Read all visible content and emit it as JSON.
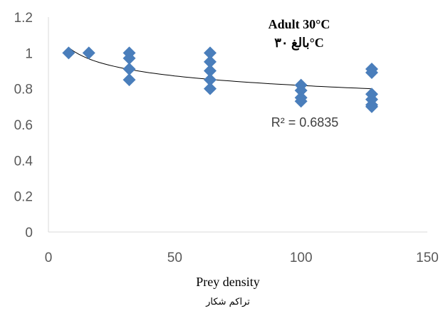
{
  "chart_data": {
    "type": "scatter",
    "title": "Adult 30°C",
    "subtitle": "بالغ ۳۰°C",
    "xlabel": "Prey density",
    "xlabel_secondary": "تراكم شكار",
    "ylabel": "",
    "xlim": [
      0,
      150
    ],
    "ylim": [
      0,
      1.2
    ],
    "x_ticks": [
      "0",
      "50",
      "100",
      "150"
    ],
    "y_ticks": [
      "0",
      "0.2",
      "0.4",
      "0.6",
      "0.8",
      "1",
      "1.2"
    ],
    "grid": false,
    "marker_color": "#4A7EBB",
    "trendline": {
      "type": "power",
      "r2_label": "R² = 0.6835",
      "points": [
        [
          8,
          1.03
        ],
        [
          16,
          0.98
        ],
        [
          32,
          0.92
        ],
        [
          64,
          0.86
        ],
        [
          100,
          0.82
        ],
        [
          128,
          0.8
        ]
      ]
    },
    "series": [
      {
        "points": [
          [
            8,
            1.0
          ],
          [
            16,
            1.0
          ],
          [
            32,
            1.0
          ],
          [
            32,
            0.97
          ],
          [
            32,
            0.91
          ],
          [
            32,
            0.85
          ],
          [
            64,
            1.0
          ],
          [
            64,
            0.95
          ],
          [
            64,
            0.9
          ],
          [
            64,
            0.85
          ],
          [
            64,
            0.8
          ],
          [
            100,
            0.82
          ],
          [
            100,
            0.79
          ],
          [
            100,
            0.75
          ],
          [
            100,
            0.73
          ],
          [
            128,
            0.91
          ],
          [
            128,
            0.89
          ],
          [
            128,
            0.77
          ],
          [
            128,
            0.74
          ],
          [
            128,
            0.71
          ],
          [
            128,
            0.7
          ]
        ]
      }
    ]
  }
}
